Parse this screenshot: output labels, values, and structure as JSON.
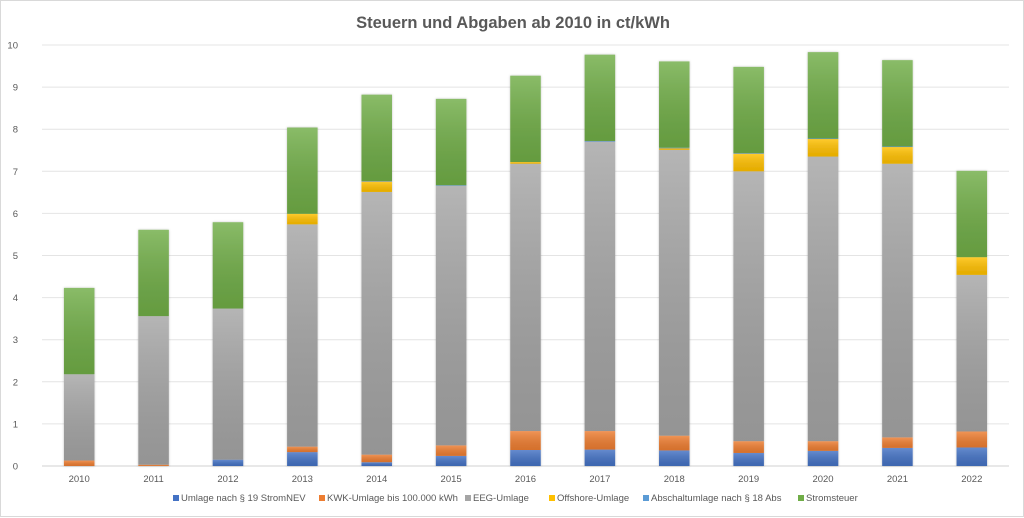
{
  "chart_data": {
    "type": "bar",
    "stacked": true,
    "title": "Steuern und Abgaben ab 2010 in ct/kWh",
    "xlabel": "",
    "ylabel": "",
    "ylim": [
      0,
      10
    ],
    "yticks": [
      "0",
      "1",
      "2",
      "3",
      "4",
      "5",
      "6",
      "7",
      "8",
      "9",
      "10"
    ],
    "grid": true,
    "legend_position": "bottom",
    "categories": [
      "2010",
      "2011",
      "2012",
      "2013",
      "2014",
      "2015",
      "2016",
      "2017",
      "2018",
      "2019",
      "2020",
      "2021",
      "2022"
    ],
    "series": [
      {
        "name": "Umlage nach § 19 StromNEV",
        "color": "#4472c4",
        "values": [
          0.0,
          0.0,
          0.15,
          0.33,
          0.09,
          0.24,
          0.38,
          0.39,
          0.37,
          0.31,
          0.36,
          0.43,
          0.44
        ]
      },
      {
        "name": "KWK-Umlage bis 100.000 kWh",
        "color": "#ed7d31",
        "values": [
          0.13,
          0.03,
          0.0,
          0.13,
          0.18,
          0.25,
          0.45,
          0.44,
          0.35,
          0.28,
          0.23,
          0.25,
          0.38
        ]
      },
      {
        "name": "EEG-Umlage",
        "color": "#a5a5a5",
        "values": [
          2.05,
          3.53,
          3.59,
          5.28,
          6.24,
          6.17,
          6.35,
          6.88,
          6.79,
          6.41,
          6.76,
          6.5,
          3.72
        ]
      },
      {
        "name": "Offshore-Umlage",
        "color": "#ffc000",
        "values": [
          0.0,
          0.0,
          0.0,
          0.25,
          0.25,
          0.0,
          0.04,
          0.0,
          0.04,
          0.42,
          0.42,
          0.4,
          0.42
        ]
      },
      {
        "name": "Abschaltumlage nach § 18 Abs",
        "color": "#5b9bd5",
        "values": [
          0.0,
          0.0,
          0.0,
          0.0,
          0.01,
          0.01,
          0.0,
          0.01,
          0.01,
          0.01,
          0.01,
          0.01,
          0.0
        ]
      },
      {
        "name": "Stromsteuer",
        "color": "#70ad47",
        "values": [
          2.05,
          2.05,
          2.05,
          2.05,
          2.05,
          2.05,
          2.05,
          2.05,
          2.05,
          2.05,
          2.05,
          2.05,
          2.05
        ]
      }
    ]
  }
}
